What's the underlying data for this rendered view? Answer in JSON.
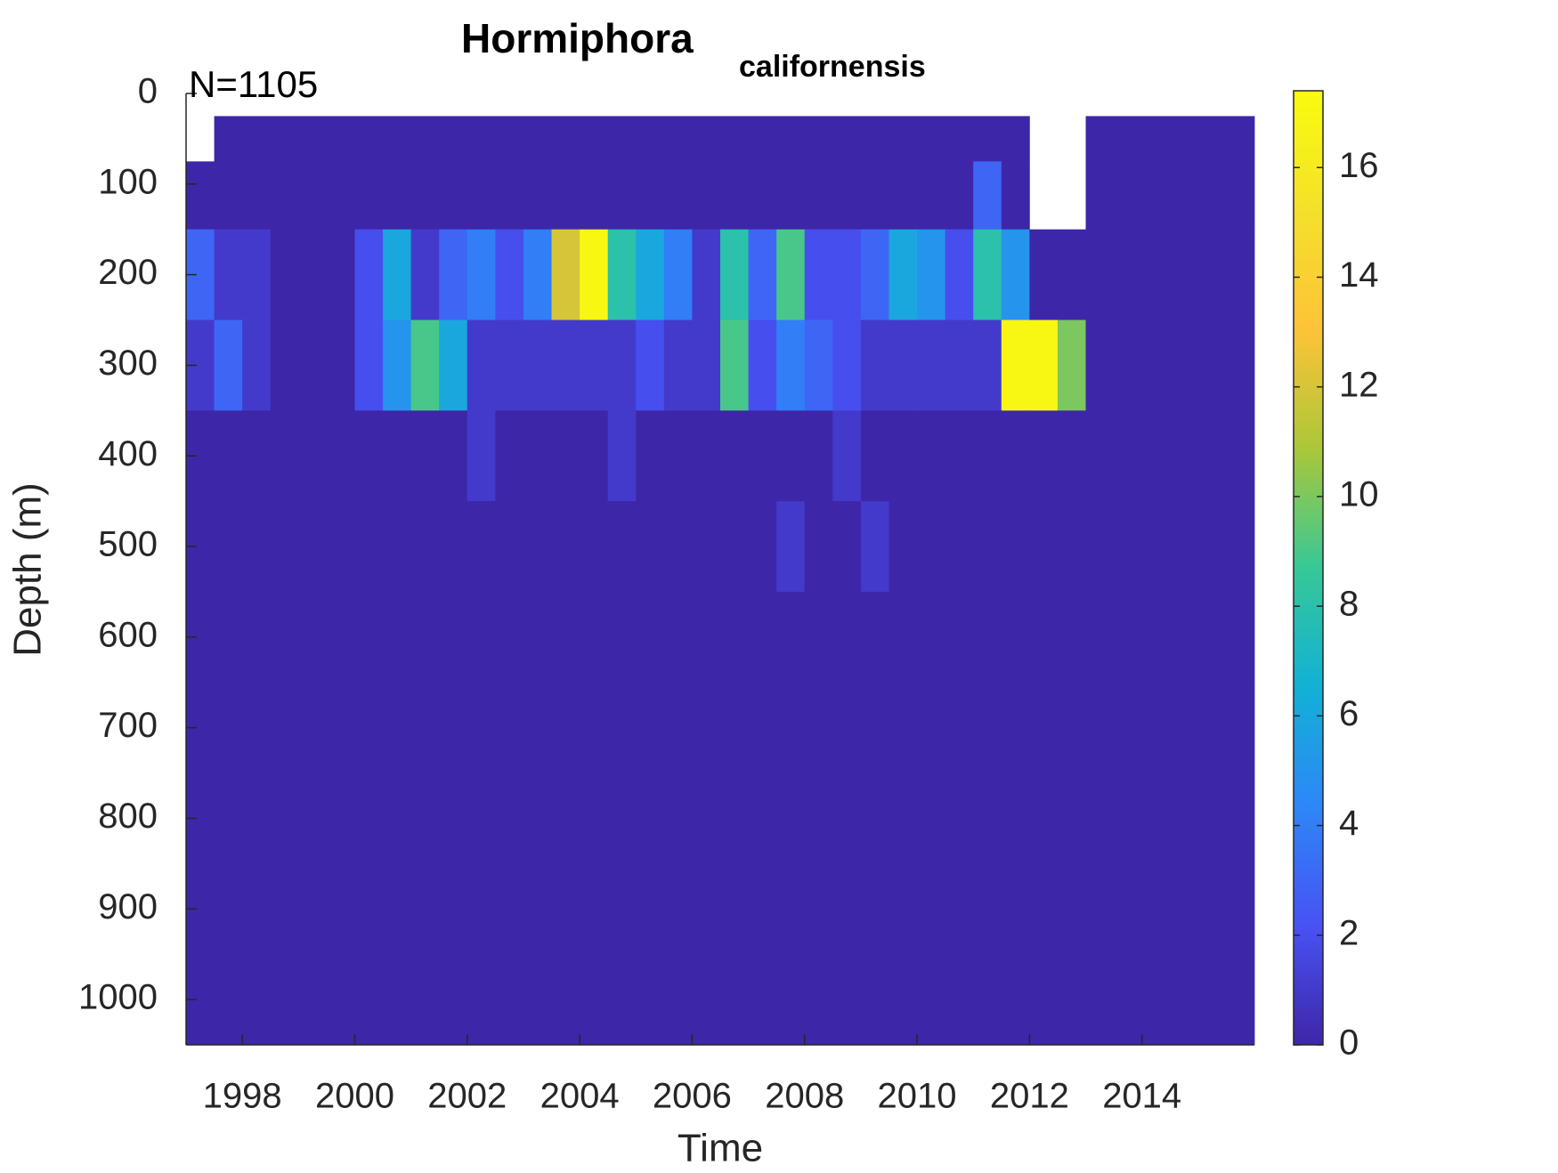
{
  "chart_data": {
    "type": "heatmap",
    "title": "Hormiphora",
    "title_subscript": "californensis",
    "annotation": "N=1105",
    "xlabel": "Time",
    "ylabel": "Depth (m)",
    "xlim": [
      1997,
      2016
    ],
    "xticks": [
      1998,
      2000,
      2002,
      2004,
      2006,
      2008,
      2010,
      2012,
      2014
    ],
    "ylim": [
      0,
      1050
    ],
    "yticks": [
      0,
      100,
      200,
      300,
      400,
      500,
      600,
      700,
      800,
      900,
      1000
    ],
    "ydir": "reverse",
    "clim": [
      0,
      17.4
    ],
    "cticks": [
      0,
      2,
      4,
      6,
      8,
      10,
      12,
      14,
      16
    ],
    "colormap": [
      "#3e26a8",
      "#4852f4",
      "#2d87f7",
      "#12b1d6",
      "#37c897",
      "#abc739",
      "#fec338",
      "#f4e12a",
      "#f9fb0e"
    ],
    "x_edges": [
      1997,
      1997.5,
      1998,
      1998.5,
      1999,
      1999.5,
      2000,
      2000.5,
      2001,
      2001.5,
      2002,
      2002.5,
      2003,
      2003.5,
      2004,
      2004.5,
      2005,
      2005.5,
      2006,
      2006.5,
      2007,
      2007.5,
      2008,
      2008.5,
      2009,
      2009.5,
      2010,
      2010.5,
      2011,
      2011.5,
      2012,
      2012.5,
      2013,
      2013.5,
      2014,
      2014.5,
      2015,
      2015.5,
      2016
    ],
    "y_edges": [
      25,
      75,
      150,
      250,
      350,
      450,
      550,
      650,
      750,
      850,
      950,
      1050
    ],
    "values": [
      [
        null,
        0,
        0,
        0,
        0,
        0,
        0,
        0,
        0,
        0,
        0,
        0,
        0,
        0,
        0,
        0,
        0,
        0,
        0,
        0,
        0,
        0,
        0,
        0,
        0,
        0,
        0,
        0,
        0,
        0,
        null,
        null,
        0,
        0,
        0,
        0,
        0,
        0
      ],
      [
        0,
        0,
        0,
        0,
        0,
        0,
        0,
        0,
        0,
        0,
        0,
        0,
        0,
        0,
        0,
        0,
        0,
        0,
        0,
        0,
        0,
        0,
        0,
        0,
        0,
        0,
        0,
        0,
        3,
        0,
        null,
        null,
        0,
        0,
        0,
        0,
        0,
        0
      ],
      [
        3,
        1,
        1,
        0,
        0,
        0,
        2,
        6,
        1,
        3,
        4,
        2,
        4,
        12,
        17,
        8,
        6,
        4,
        1,
        8,
        3,
        9,
        2,
        2,
        3,
        6,
        5,
        2,
        8,
        5,
        0,
        0,
        0,
        0,
        0,
        0,
        0,
        0
      ],
      [
        1,
        3,
        1,
        0,
        0,
        0,
        2,
        5,
        9,
        6,
        1,
        1,
        1,
        1,
        1,
        1,
        2,
        1,
        1,
        9,
        2,
        4,
        3,
        2,
        1,
        1,
        1,
        1,
        1,
        17,
        17,
        10,
        0,
        0,
        0,
        0,
        0,
        0
      ],
      [
        0,
        0,
        0,
        0,
        0,
        0,
        0,
        0,
        0,
        0,
        1,
        0,
        0,
        0,
        0,
        1,
        0,
        0,
        0,
        0,
        0,
        0,
        0,
        1,
        0,
        0,
        0,
        0,
        0,
        0,
        0,
        0,
        0,
        0,
        0,
        0,
        0,
        0
      ],
      [
        0,
        0,
        0,
        0,
        0,
        0,
        0,
        0,
        0,
        0,
        0,
        0,
        0,
        0,
        0,
        0,
        0,
        0,
        0,
        0,
        0,
        1,
        0,
        0,
        1,
        0,
        0,
        0,
        0,
        0,
        0,
        0,
        0,
        0,
        0,
        0,
        0,
        0
      ],
      [
        0,
        0,
        0,
        0,
        0,
        0,
        0,
        0,
        0,
        0,
        0,
        0,
        0,
        0,
        0,
        0,
        0,
        0,
        0,
        0,
        0,
        0,
        0,
        0,
        0,
        0,
        0,
        0,
        0,
        0,
        0,
        0,
        0,
        0,
        0,
        0,
        0,
        0
      ],
      [
        0,
        0,
        0,
        0,
        0,
        0,
        0,
        0,
        0,
        0,
        0,
        0,
        0,
        0,
        0,
        0,
        0,
        0,
        0,
        0,
        0,
        0,
        0,
        0,
        0,
        0,
        0,
        0,
        0,
        0,
        0,
        0,
        0,
        0,
        0,
        0,
        0,
        0
      ],
      [
        0,
        0,
        0,
        0,
        0,
        0,
        0,
        0,
        0,
        0,
        0,
        0,
        0,
        0,
        0,
        0,
        0,
        0,
        0,
        0,
        0,
        0,
        0,
        0,
        0,
        0,
        0,
        0,
        0,
        0,
        0,
        0,
        0,
        0,
        0,
        0,
        0,
        0
      ],
      [
        0,
        0,
        0,
        0,
        0,
        0,
        0,
        0,
        0,
        0,
        0,
        0,
        0,
        0,
        0,
        0,
        0,
        0,
        0,
        0,
        0,
        0,
        0,
        0,
        0,
        0,
        0,
        0,
        0,
        0,
        0,
        0,
        0,
        0,
        0,
        0,
        0,
        0
      ],
      [
        0,
        0,
        0,
        0,
        0,
        0,
        0,
        0,
        0,
        0,
        0,
        0,
        0,
        0,
        0,
        0,
        0,
        0,
        0,
        0,
        0,
        0,
        0,
        0,
        0,
        0,
        0,
        0,
        0,
        0,
        0,
        0,
        0,
        0,
        0,
        0,
        0,
        0
      ]
    ]
  }
}
